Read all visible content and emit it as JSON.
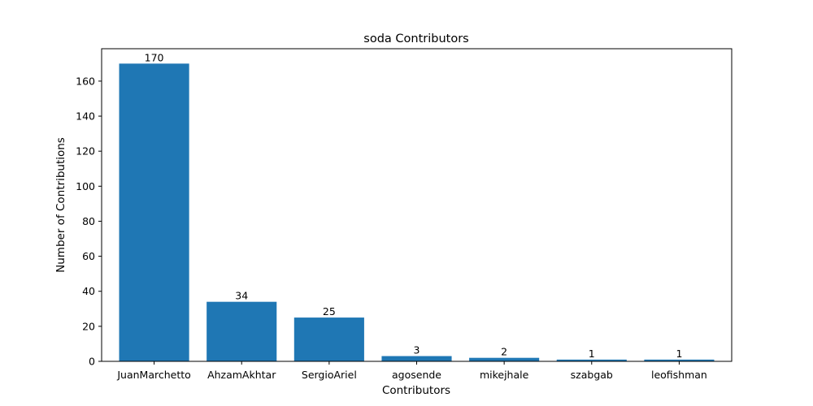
{
  "chart_data": {
    "type": "bar",
    "title": "soda Contributors",
    "xlabel": "Contributors",
    "ylabel": "Number of Contributions",
    "categories": [
      "JuanMarchetto",
      "AhzamAkhtar",
      "SergioAriel",
      "agosende",
      "mikejhale",
      "szabgab",
      "leofishman"
    ],
    "values": [
      170,
      34,
      25,
      3,
      2,
      1,
      1
    ],
    "data_labels": [
      "170",
      "34",
      "25",
      "3",
      "2",
      "1",
      "1"
    ],
    "ylim": [
      0,
      178.5
    ],
    "yticks": [
      0,
      20,
      40,
      60,
      80,
      100,
      120,
      140,
      160
    ],
    "grid": false,
    "legend": "none",
    "bar_color": "#1f77b4"
  }
}
